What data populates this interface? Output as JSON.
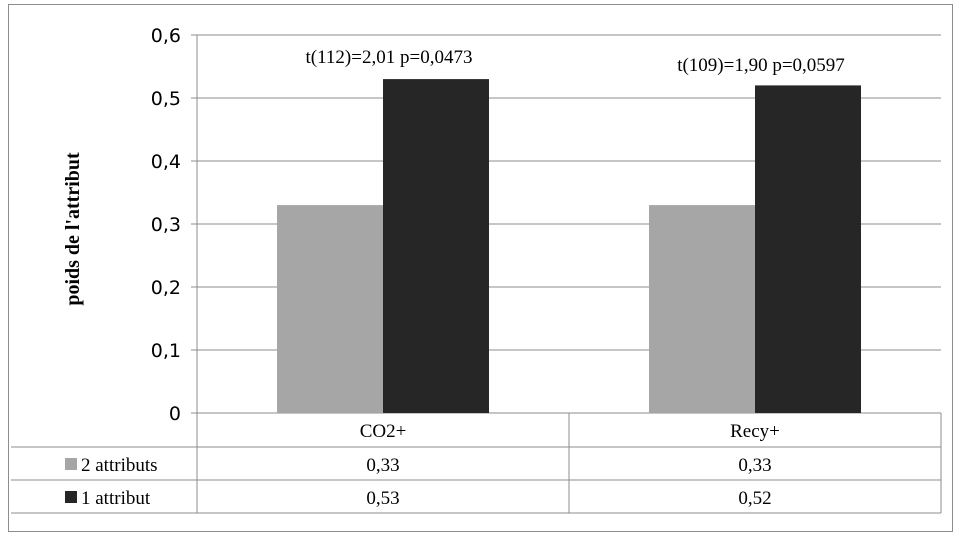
{
  "chart_data": {
    "type": "bar",
    "title": "",
    "xlabel": "",
    "ylabel": "poids de l'attribut",
    "categories": [
      "CO2+",
      "Recy+"
    ],
    "series": [
      {
        "name": "2 attributs",
        "values": [
          0.33,
          0.33
        ],
        "color": "#a6a6a6"
      },
      {
        "name": "1 attribut",
        "values": [
          0.53,
          0.52
        ],
        "color": "#262626"
      }
    ],
    "ylim": [
      0,
      0.6
    ],
    "yticks": [
      "0",
      "0,1",
      "0,2",
      "0,3",
      "0,4",
      "0,5",
      "0,6"
    ],
    "grid": true,
    "legend": "data-table",
    "table_values": [
      [
        "0,33",
        "0,33"
      ],
      [
        "0,53",
        "0,52"
      ]
    ],
    "annotations": [
      "t(112)=2,01 p=0,0473",
      "t(109)=1,90 p=0,0597"
    ]
  }
}
